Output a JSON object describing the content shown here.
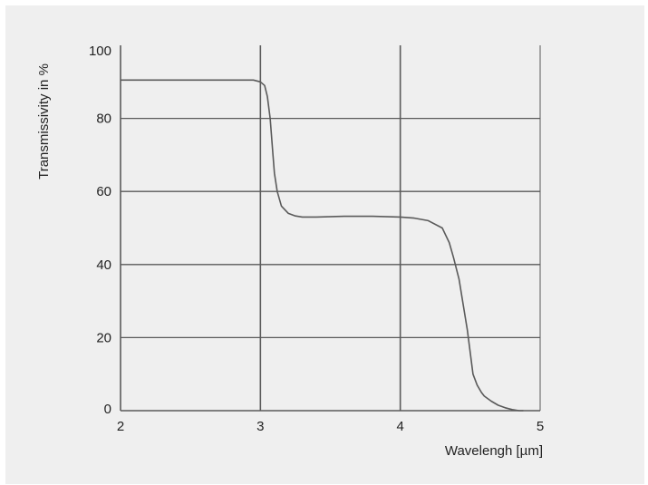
{
  "chart_data": {
    "type": "line",
    "title": "",
    "xlabel": "Wavelengh [µm]",
    "ylabel": "Transmissivity in %",
    "xlim": [
      2,
      5
    ],
    "ylim": [
      0,
      100
    ],
    "x_ticks": [
      2,
      3,
      4,
      5
    ],
    "y_ticks": [
      0,
      20,
      40,
      60,
      80,
      100
    ],
    "grid": true,
    "series": [
      {
        "x": [
          2.0,
          2.3,
          2.5,
          2.8,
          2.95,
          3.0,
          3.03,
          3.05,
          3.07,
          3.09,
          3.1,
          3.12,
          3.15,
          3.2,
          3.25,
          3.3,
          3.4,
          3.6,
          3.8,
          4.0,
          4.1,
          4.2,
          4.3,
          4.35,
          4.38,
          4.42,
          4.45,
          4.48,
          4.5,
          4.52,
          4.55,
          4.58,
          4.6,
          4.65,
          4.7,
          4.75,
          4.8,
          4.85,
          4.88
        ],
        "y": [
          90.5,
          90.5,
          90.5,
          90.5,
          90.5,
          90,
          89,
          86,
          80,
          70,
          65,
          60,
          56,
          54,
          53.3,
          53,
          53,
          53.2,
          53.2,
          53,
          52.7,
          52,
          50,
          46,
          42,
          36,
          29,
          22,
          16,
          10,
          7,
          5,
          4,
          2.6,
          1.5,
          0.8,
          0.3,
          0,
          0
        ]
      }
    ],
    "colors": {
      "line": "#5a5a5a",
      "grid": "#5a5a5a",
      "background": "#efefef"
    }
  }
}
